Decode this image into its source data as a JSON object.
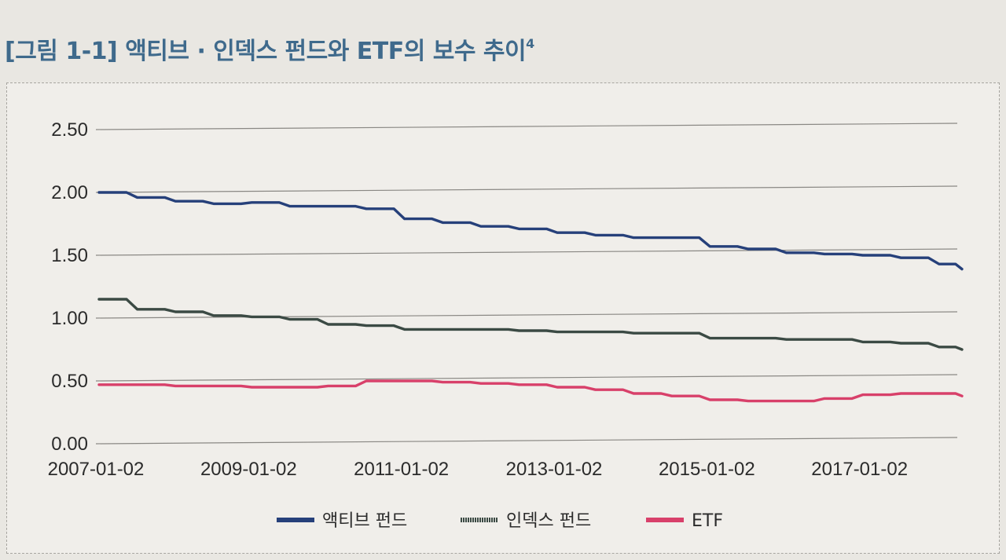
{
  "figure": {
    "title": "[그림 1-1] 액티브 · 인덱스 펀드와 ETF의 보수 추이",
    "footnote_mark": "4"
  },
  "chart_data": {
    "type": "line",
    "title": "[그림 1-1] 액티브 · 인덱스 펀드와 ETF의 보수 추이",
    "xlabel": "",
    "ylabel": "",
    "ylim": [
      0,
      2.5
    ],
    "grid": "horizontal",
    "legend": "bottom",
    "y_ticks": [
      "0.00",
      "0.50",
      "1.00",
      "1.50",
      "2.00",
      "2.50"
    ],
    "x_ticks": [
      "2007-01-02",
      "2009-01-02",
      "2011-01-02",
      "2013-01-02",
      "2015-01-02",
      "2017-01-02"
    ],
    "x": [
      2007.0,
      2007.5,
      2008.0,
      2008.5,
      2009.0,
      2009.5,
      2010.0,
      2010.5,
      2011.0,
      2011.5,
      2012.0,
      2012.5,
      2013.0,
      2013.5,
      2014.0,
      2014.5,
      2015.0,
      2015.5,
      2016.0,
      2016.5,
      2017.0,
      2017.5,
      2018.0,
      2018.3
    ],
    "series": [
      {
        "name": "액티브 펀드",
        "color": "#26407a",
        "values": [
          2.0,
          1.96,
          1.93,
          1.91,
          1.92,
          1.89,
          1.89,
          1.87,
          1.79,
          1.76,
          1.73,
          1.71,
          1.68,
          1.66,
          1.64,
          1.64,
          1.57,
          1.55,
          1.52,
          1.51,
          1.5,
          1.48,
          1.43,
          1.39
        ]
      },
      {
        "name": "인덱스 펀드",
        "color": "#3b4a44",
        "values": [
          1.15,
          1.07,
          1.05,
          1.02,
          1.01,
          0.99,
          0.95,
          0.94,
          0.91,
          0.91,
          0.91,
          0.9,
          0.89,
          0.89,
          0.88,
          0.88,
          0.84,
          0.84,
          0.83,
          0.83,
          0.81,
          0.8,
          0.77,
          0.75
        ]
      },
      {
        "name": "ETF",
        "color": "#d8406a",
        "values": [
          0.47,
          0.47,
          0.46,
          0.46,
          0.45,
          0.45,
          0.46,
          0.5,
          0.5,
          0.49,
          0.48,
          0.47,
          0.45,
          0.43,
          0.4,
          0.38,
          0.35,
          0.34,
          0.34,
          0.36,
          0.39,
          0.4,
          0.4,
          0.38
        ]
      }
    ]
  }
}
